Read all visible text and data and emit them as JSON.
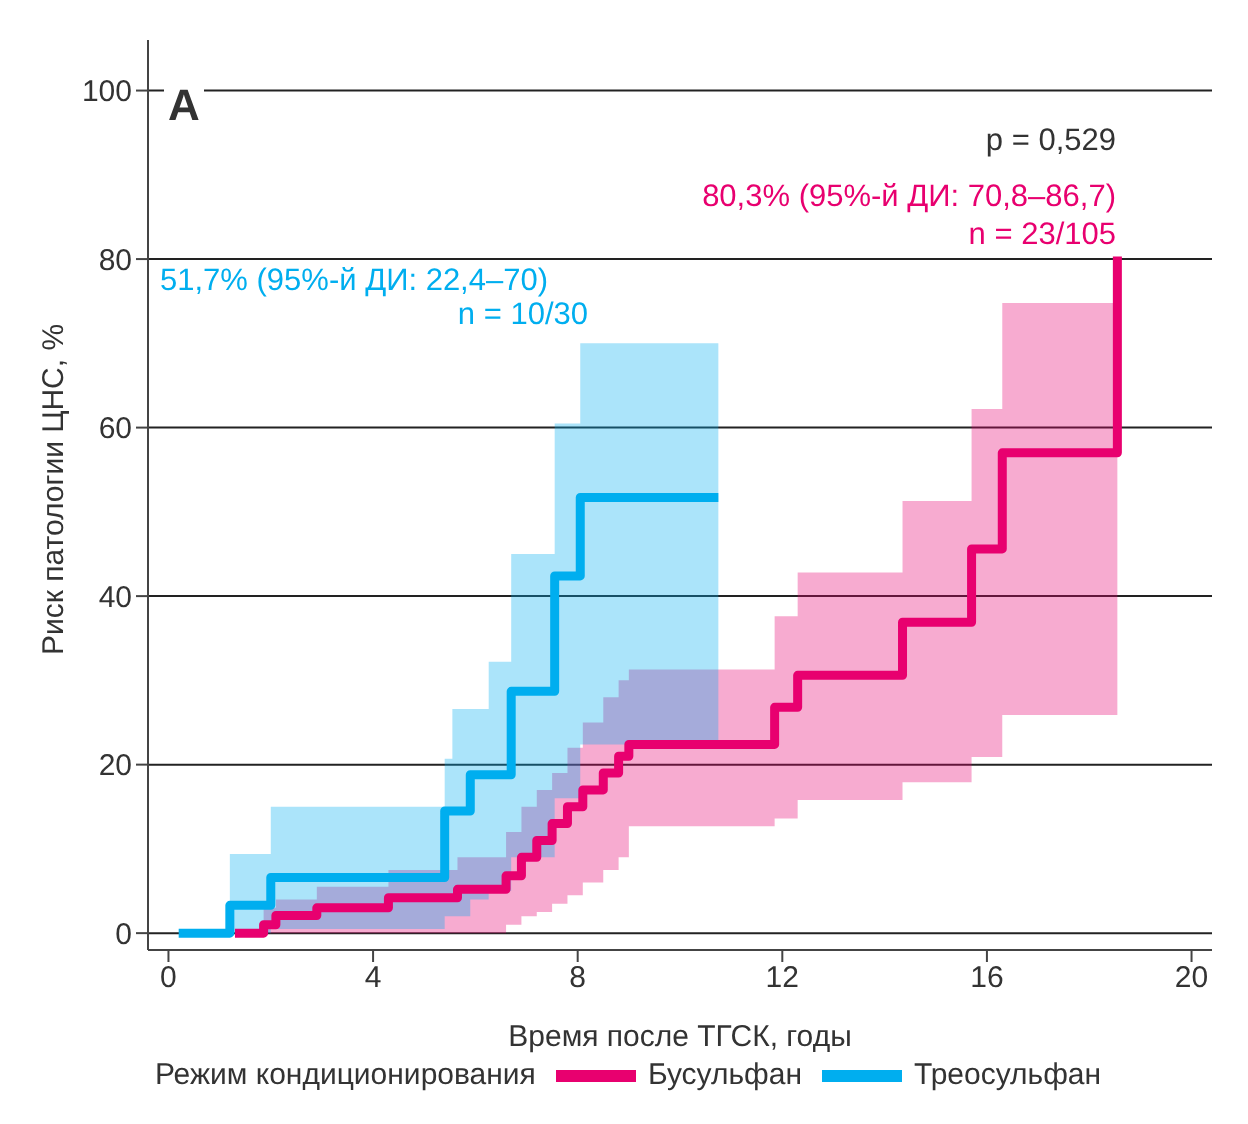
{
  "chart_data": {
    "type": "step",
    "xlabel": "Время после ТГСК, годы",
    "ylabel": "Риск патологии ЦНС, %",
    "legend_title": "Режим кондиционирования",
    "xlim": [
      -0.4,
      20.4
    ],
    "xticks": [
      0,
      4,
      8,
      12,
      16,
      20
    ],
    "ylim": [
      -2,
      106
    ],
    "yticks": [
      0,
      20,
      40,
      60,
      80,
      100
    ],
    "grid": "y",
    "legend": "bottom",
    "line_style": "solid",
    "annotations": [
      "A",
      "p = 0,529",
      "80,3% (95%-й ДИ: 70,8–86,7)",
      "n = 23/105",
      "51,7% (95%-й ДИ: 22,4–70)",
      "n = 10/30"
    ],
    "series": [
      {
        "name": "Бусульфан",
        "color": "#e8006f",
        "x": [
          1.3,
          1.86,
          2.1,
          2.9,
          4.3,
          5.65,
          6.6,
          6.9,
          7.2,
          7.5,
          7.8,
          8.1,
          8.5,
          8.8,
          9.0,
          11.85,
          12.3,
          14.35,
          15.7,
          16.3,
          18.55
        ],
        "values": [
          0,
          1,
          2.1,
          3,
          4.2,
          5.2,
          6.8,
          9,
          11,
          13,
          15,
          17,
          19,
          21,
          22.4,
          26.8,
          30.6,
          36.9,
          45.6,
          57,
          80.3
        ],
        "lower": [
          0,
          0,
          0,
          0,
          0,
          0,
          1,
          2,
          2.5,
          3.5,
          4.5,
          6,
          7.5,
          9,
          12.7,
          13.6,
          15.8,
          17.9,
          20.9,
          25.9,
          25.9
        ],
        "upper": [
          0,
          3,
          4,
          5.5,
          7.5,
          9,
          12,
          15,
          17,
          19,
          22,
          25,
          28,
          30,
          31.3,
          37.6,
          42.8,
          51.3,
          62.2,
          74.8,
          74.8
        ]
      },
      {
        "name": "Треосульфан",
        "color": "#00aeef",
        "x": [
          0.2,
          1.2,
          2.0,
          5.4,
          5.55,
          5.9,
          6.26,
          6.7,
          7.55,
          8.05,
          10.75
        ],
        "values": [
          0,
          3.3,
          6.6,
          14.5,
          14.5,
          18.8,
          18.8,
          28.7,
          42.4,
          51.7,
          51.7
        ],
        "lower": [
          0,
          0,
          0.5,
          2,
          2,
          4,
          5,
          9,
          16,
          22.4,
          22.4
        ],
        "upper": [
          0,
          9.4,
          15,
          20.7,
          26.6,
          26.6,
          32.2,
          45,
          60.5,
          70,
          70
        ]
      }
    ]
  }
}
